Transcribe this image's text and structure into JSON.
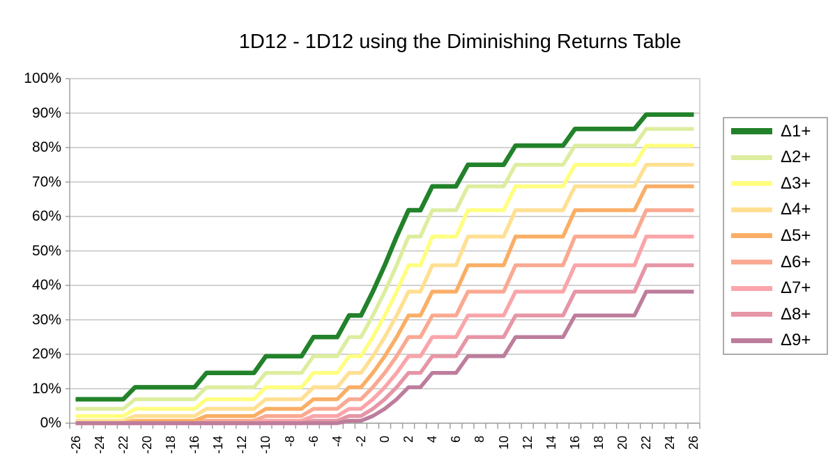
{
  "title": "1D12 - 1D12 using the Diminishing Returns Table",
  "chart_data": {
    "type": "line",
    "title": "1D12 - 1D12 using the Diminishing Returns Table",
    "xlabel": "",
    "ylabel": "",
    "ylim": [
      0,
      100
    ],
    "grid": "horizontal",
    "legend_position": "right",
    "x": [
      -26,
      -25,
      -24,
      -23,
      -22,
      -21,
      -20,
      -19,
      -18,
      -17,
      -16,
      -15,
      -14,
      -13,
      -12,
      -11,
      -10,
      -9,
      -8,
      -7,
      -6,
      -5,
      -4,
      -3,
      -2,
      -1,
      0,
      1,
      2,
      3,
      4,
      5,
      6,
      7,
      8,
      9,
      10,
      11,
      12,
      13,
      14,
      15,
      16,
      17,
      18,
      19,
      20,
      21,
      22,
      23,
      24,
      25,
      26
    ],
    "x_tick_labels": [
      "-26",
      "-24",
      "-22",
      "-20",
      "-18",
      "-16",
      "-14",
      "-12",
      "-10",
      "-8",
      "-6",
      "-4",
      "-2",
      "0",
      "2",
      "4",
      "6",
      "8",
      "10",
      "12",
      "14",
      "16",
      "18",
      "20",
      "22",
      "24",
      "26"
    ],
    "y_tick_labels": [
      "0%",
      "10%",
      "20%",
      "30%",
      "40%",
      "50%",
      "60%",
      "70%",
      "80%",
      "90%",
      "100%"
    ],
    "grid_color": "#c2c2c2",
    "axis_color": "#999999",
    "series": [
      {
        "name": "Δ1+",
        "color": "#22822a",
        "values": [
          6.94,
          6.94,
          6.94,
          6.94,
          6.94,
          10.42,
          10.42,
          10.42,
          10.42,
          10.42,
          10.42,
          14.58,
          14.58,
          14.58,
          14.58,
          14.58,
          19.44,
          19.44,
          19.44,
          19.44,
          25,
          25,
          25,
          31.25,
          31.25,
          38.19,
          45.83,
          54.17,
          61.81,
          61.81,
          68.75,
          68.75,
          68.75,
          75,
          75,
          75,
          75,
          80.56,
          80.56,
          80.56,
          80.56,
          80.56,
          85.42,
          85.42,
          85.42,
          85.42,
          85.42,
          85.42,
          89.58,
          89.58,
          89.58,
          89.58,
          89.58
        ]
      },
      {
        "name": "Δ2+",
        "color": "#dded9f",
        "values": [
          4.17,
          4.17,
          4.17,
          4.17,
          4.17,
          6.94,
          6.94,
          6.94,
          6.94,
          6.94,
          6.94,
          10.42,
          10.42,
          10.42,
          10.42,
          10.42,
          14.58,
          14.58,
          14.58,
          14.58,
          19.44,
          19.44,
          19.44,
          25,
          25,
          31.25,
          38.19,
          45.83,
          54.17,
          54.17,
          61.81,
          61.81,
          61.81,
          68.75,
          68.75,
          68.75,
          68.75,
          75,
          75,
          75,
          75,
          75,
          80.56,
          80.56,
          80.56,
          80.56,
          80.56,
          80.56,
          85.42,
          85.42,
          85.42,
          85.42,
          85.42
        ]
      },
      {
        "name": "Δ3+",
        "color": "#ffff80",
        "values": [
          2.08,
          2.08,
          2.08,
          2.08,
          2.08,
          4.17,
          4.17,
          4.17,
          4.17,
          4.17,
          4.17,
          6.94,
          6.94,
          6.94,
          6.94,
          6.94,
          10.42,
          10.42,
          10.42,
          10.42,
          14.58,
          14.58,
          14.58,
          19.44,
          19.44,
          25,
          31.25,
          38.19,
          45.83,
          45.83,
          54.17,
          54.17,
          54.17,
          61.81,
          61.81,
          61.81,
          61.81,
          68.75,
          68.75,
          68.75,
          68.75,
          68.75,
          75,
          75,
          75,
          75,
          75,
          75,
          80.56,
          80.56,
          80.56,
          80.56,
          80.56
        ]
      },
      {
        "name": "Δ4+",
        "color": "#ffe093",
        "values": [
          0.69,
          0.69,
          0.69,
          0.69,
          0.69,
          2.08,
          2.08,
          2.08,
          2.08,
          2.08,
          2.08,
          4.17,
          4.17,
          4.17,
          4.17,
          4.17,
          6.94,
          6.94,
          6.94,
          6.94,
          10.42,
          10.42,
          10.42,
          14.58,
          14.58,
          19.44,
          25,
          31.25,
          38.19,
          38.19,
          45.83,
          45.83,
          45.83,
          54.17,
          54.17,
          54.17,
          54.17,
          61.81,
          61.81,
          61.81,
          61.81,
          61.81,
          68.75,
          68.75,
          68.75,
          68.75,
          68.75,
          68.75,
          75,
          75,
          75,
          75,
          75
        ]
      },
      {
        "name": "Δ5+",
        "color": "#faae65",
        "values": [
          0,
          0,
          0,
          0,
          0,
          0.69,
          0.69,
          0.69,
          0.69,
          0.69,
          0.69,
          2.08,
          2.08,
          2.08,
          2.08,
          2.08,
          4.17,
          4.17,
          4.17,
          4.17,
          6.94,
          6.94,
          6.94,
          10.42,
          10.42,
          14.58,
          19.44,
          25,
          31.25,
          31.25,
          38.19,
          38.19,
          38.19,
          45.83,
          45.83,
          45.83,
          45.83,
          54.17,
          54.17,
          54.17,
          54.17,
          54.17,
          61.81,
          61.81,
          61.81,
          61.81,
          61.81,
          61.81,
          68.75,
          68.75,
          68.75,
          68.75,
          68.75
        ]
      },
      {
        "name": "Δ6+",
        "color": "#faa992",
        "values": [
          0,
          0,
          0,
          0,
          0,
          0,
          0,
          0,
          0,
          0,
          0,
          0.69,
          0.69,
          0.69,
          0.69,
          0.69,
          2.08,
          2.08,
          2.08,
          2.08,
          4.17,
          4.17,
          4.17,
          6.94,
          6.94,
          10.42,
          14.58,
          19.44,
          25,
          25,
          31.25,
          31.25,
          31.25,
          38.19,
          38.19,
          38.19,
          38.19,
          45.83,
          45.83,
          45.83,
          45.83,
          45.83,
          54.17,
          54.17,
          54.17,
          54.17,
          54.17,
          54.17,
          61.81,
          61.81,
          61.81,
          61.81,
          61.81
        ]
      },
      {
        "name": "Δ7+",
        "color": "#faa5aa",
        "values": [
          0,
          0,
          0,
          0,
          0,
          0,
          0,
          0,
          0,
          0,
          0,
          0,
          0,
          0,
          0,
          0,
          0.69,
          0.69,
          0.69,
          0.69,
          2.08,
          2.08,
          2.08,
          4.17,
          4.17,
          6.94,
          10.42,
          14.58,
          19.44,
          19.44,
          25,
          25,
          25,
          31.25,
          31.25,
          31.25,
          31.25,
          38.19,
          38.19,
          38.19,
          38.19,
          38.19,
          45.83,
          45.83,
          45.83,
          45.83,
          45.83,
          45.83,
          54.17,
          54.17,
          54.17,
          54.17,
          54.17
        ]
      },
      {
        "name": "Δ8+",
        "color": "#e696a6",
        "values": [
          0,
          0,
          0,
          0,
          0,
          0,
          0,
          0,
          0,
          0,
          0,
          0,
          0,
          0,
          0,
          0,
          0,
          0,
          0,
          0,
          0.69,
          0.69,
          0.69,
          2.08,
          2.08,
          4.17,
          6.94,
          10.42,
          14.58,
          14.58,
          19.44,
          19.44,
          19.44,
          25,
          25,
          25,
          25,
          31.25,
          31.25,
          31.25,
          31.25,
          31.25,
          38.19,
          38.19,
          38.19,
          38.19,
          38.19,
          38.19,
          45.83,
          45.83,
          45.83,
          45.83,
          45.83
        ]
      },
      {
        "name": "Δ9+",
        "color": "#bd7d9c",
        "values": [
          0,
          0,
          0,
          0,
          0,
          0,
          0,
          0,
          0,
          0,
          0,
          0,
          0,
          0,
          0,
          0,
          0,
          0,
          0,
          0,
          0,
          0,
          0,
          0.69,
          0.69,
          2.08,
          4.17,
          6.94,
          10.42,
          10.42,
          14.58,
          14.58,
          14.58,
          19.44,
          19.44,
          19.44,
          19.44,
          25,
          25,
          25,
          25,
          25,
          31.25,
          31.25,
          31.25,
          31.25,
          31.25,
          31.25,
          38.19,
          38.19,
          38.19,
          38.19,
          38.19
        ]
      }
    ]
  }
}
